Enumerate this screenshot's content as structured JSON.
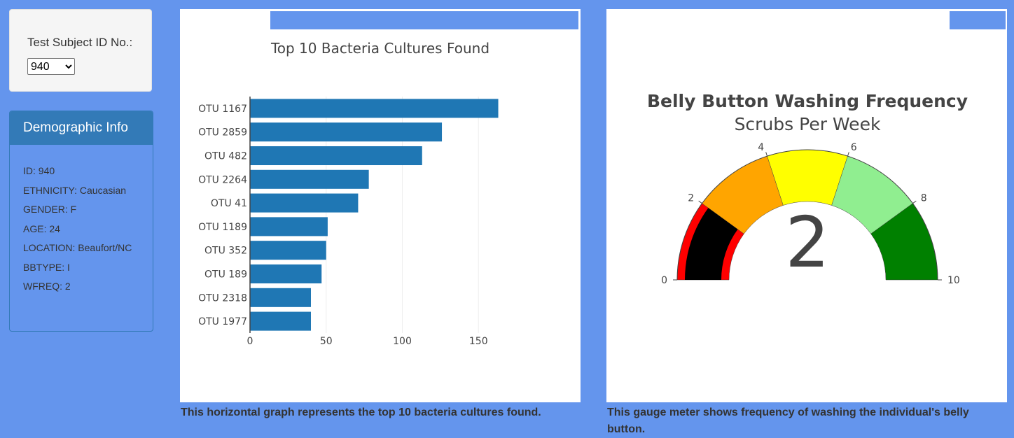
{
  "selector": {
    "label": "Test Subject ID No.:",
    "selected": "940"
  },
  "demographics": {
    "title": "Demographic Info",
    "lines": [
      "ID: 940",
      "ETHNICITY: Caucasian",
      "GENDER: F",
      "AGE: 24",
      "LOCATION: Beaufort/NC",
      "BBTYPE: I",
      "WFREQ: 2"
    ]
  },
  "bar_caption": "This horizontal graph represents the top 10 bacteria cultures found.",
  "gauge_caption": "This gauge meter shows frequency of washing the individual's belly button.",
  "chart_data": [
    {
      "type": "bar",
      "orientation": "horizontal",
      "title": "Top 10 Bacteria Cultures Found",
      "categories": [
        "OTU 1167",
        "OTU 2859",
        "OTU 482",
        "OTU 2264",
        "OTU 41",
        "OTU 1189",
        "OTU 352",
        "OTU 189",
        "OTU 2318",
        "OTU 1977"
      ],
      "values": [
        163,
        126,
        113,
        78,
        71,
        51,
        50,
        47,
        40,
        40
      ],
      "xlim": [
        0,
        200
      ],
      "xticks": [
        0,
        50,
        100,
        150
      ],
      "grid": true,
      "color": "#1f77b4"
    },
    {
      "type": "gauge",
      "title": "Belly Button Washing Frequency",
      "subtitle": "Scrubs Per Week",
      "value": 2,
      "range": [
        0,
        10
      ],
      "ticks": [
        0,
        2,
        4,
        6,
        8,
        10
      ],
      "bar_color": "#000000",
      "steps": [
        {
          "range": [
            0,
            2
          ],
          "color": "#ff0000"
        },
        {
          "range": [
            2,
            4
          ],
          "color": "#ffa500"
        },
        {
          "range": [
            4,
            6
          ],
          "color": "#ffff00"
        },
        {
          "range": [
            6,
            8
          ],
          "color": "#90ee90"
        },
        {
          "range": [
            8,
            10
          ],
          "color": "#008000"
        }
      ]
    }
  ]
}
